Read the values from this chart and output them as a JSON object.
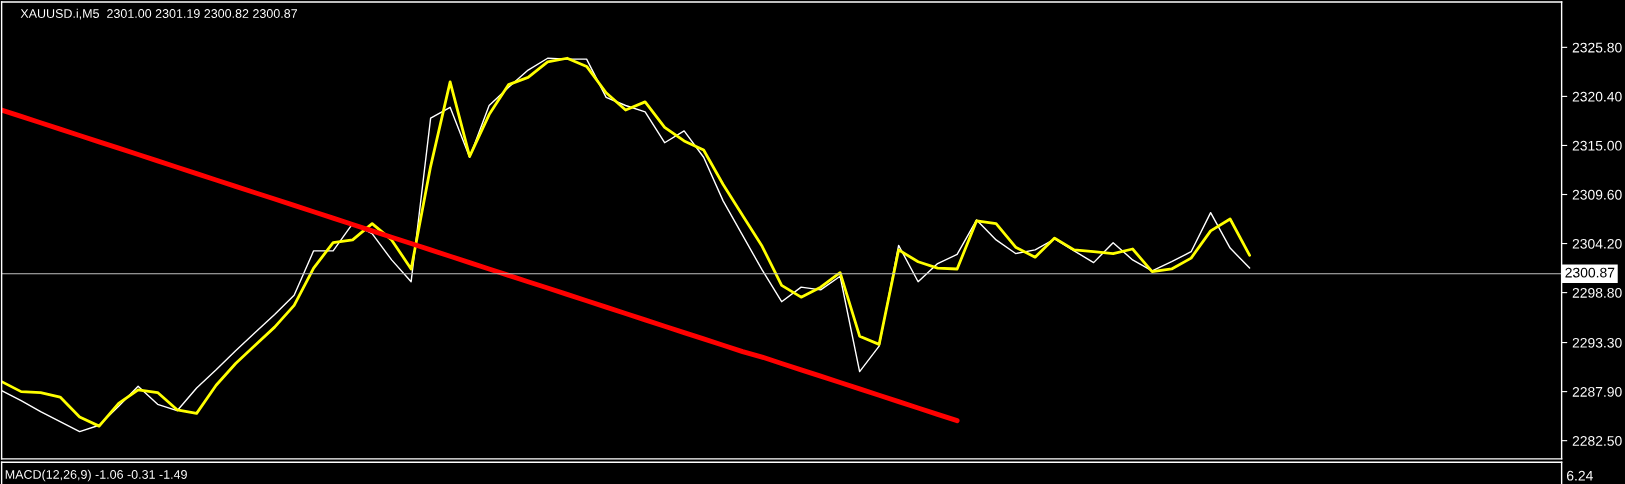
{
  "chart_data": [
    {
      "type": "line",
      "title": "XAUUSD.i,M5  2301.00 2301.19 2300.82 2300.87",
      "categories": [
        null,
        null,
        null,
        null,
        null,
        null,
        null,
        null,
        null,
        null,
        null,
        null,
        null,
        null,
        null,
        null,
        null,
        null,
        null,
        null,
        null,
        null,
        null,
        null,
        null,
        null,
        null,
        null,
        null,
        null,
        null,
        null,
        null,
        null,
        null,
        null,
        null,
        null,
        null,
        null,
        null,
        null,
        null,
        null,
        null,
        null,
        null,
        null,
        null,
        null,
        null,
        null,
        null,
        null,
        null,
        null,
        null,
        null,
        null,
        null,
        null,
        null,
        null,
        null,
        null,
        null,
        null,
        null,
        null,
        null,
        null,
        null,
        null,
        null,
        null,
        null,
        null,
        null,
        null,
        null,
        null
      ],
      "ylim": [
        2280.5,
        2330.8
      ],
      "yticks": [
        {
          "value": 2282.5,
          "label": "2282.50"
        },
        {
          "value": 2287.9,
          "label": "2287.90"
        },
        {
          "value": 2293.3,
          "label": "2293.30"
        },
        {
          "value": 2298.8,
          "label": "2298.80"
        },
        {
          "value": 2304.2,
          "label": "2304.20"
        },
        {
          "value": 2309.6,
          "label": "2309.60"
        },
        {
          "value": 2315.0,
          "label": "2315.00"
        },
        {
          "value": 2320.4,
          "label": "2320.40"
        },
        {
          "value": 2325.8,
          "label": "2325.80"
        }
      ],
      "tick_labels": "y",
      "grid": false,
      "legend": false,
      "marker": "none",
      "series": [
        {
          "color": "#ffffff",
          "values": [
            2288.0,
            2286.9,
            2285.7,
            2284.6,
            2283.5,
            2284.2,
            2286.3,
            2288.5,
            2286.5,
            2285.8,
            2288.3,
            2290.3,
            2292.4,
            2294.4,
            2296.4,
            2298.5,
            2303.4,
            2303.4,
            2306.4,
            2305.3,
            2302.4,
            2300.0,
            2318.0,
            2319.2,
            2313.7,
            2319.4,
            2321.4,
            2323.3,
            2324.6,
            2324.5,
            2324.5,
            2320.3,
            2319.4,
            2318.7,
            2315.3,
            2316.6,
            2313.7,
            2308.9,
            2305.1,
            2301.3,
            2297.8,
            2299.4,
            2299.1,
            2300.6,
            2290.1,
            2292.9,
            2304.0,
            2300.0,
            2302.0,
            2303.0,
            2306.8,
            2304.6,
            2303.1,
            2303.5,
            2304.7,
            2303.4,
            2302.1,
            2304.3,
            2302.4,
            2301.2,
            2302.2,
            2303.3,
            2307.6,
            2303.7,
            2301.5,
            null,
            null,
            null,
            null,
            null,
            null,
            null,
            null,
            null,
            null,
            null,
            null,
            null,
            null,
            null,
            null
          ]
        },
        {
          "color": "#ffff00",
          "values": [
            2289.0,
            2287.9,
            2287.8,
            2287.3,
            2285.1,
            2284.1,
            2286.6,
            2288.1,
            2287.8,
            2285.9,
            2285.5,
            2288.6,
            2291.0,
            2293.0,
            2295.0,
            2297.4,
            2301.5,
            2304.3,
            2304.6,
            2306.4,
            2304.6,
            2301.4,
            2312.7,
            2322.0,
            2313.8,
            2318.4,
            2321.7,
            2322.5,
            2324.2,
            2324.6,
            2323.7,
            2320.8,
            2318.9,
            2319.8,
            2317.0,
            2315.5,
            2314.5,
            2310.7,
            2307.3,
            2303.9,
            2299.6,
            2298.3,
            2299.4,
            2301.0,
            2294.0,
            2293.1,
            2303.5,
            2302.2,
            2301.5,
            2301.4,
            2306.7,
            2306.4,
            2303.8,
            2302.7,
            2304.8,
            2303.5,
            2303.3,
            2303.1,
            2303.6,
            2301.1,
            2301.4,
            2302.6,
            2305.6,
            2306.9,
            2302.9,
            null,
            null,
            null,
            null,
            null,
            null,
            null,
            null,
            null,
            null,
            null,
            null,
            null,
            null,
            null,
            null
          ]
        },
        {
          "color": "#ff0000",
          "values": [
            2318.9,
            2318.2,
            2317.5,
            2316.8,
            2316.1,
            2315.4,
            2314.7,
            2314.0,
            2313.3,
            2312.6,
            2311.9,
            2311.2,
            2310.5,
            2309.8,
            2309.1,
            2308.4,
            2307.7,
            2307.0,
            2306.3,
            2305.6,
            2304.9,
            2304.2,
            2303.5,
            2302.8,
            2302.1,
            2301.4,
            2300.7,
            2300.0,
            2299.3,
            2298.6,
            2297.9,
            2297.2,
            2296.5,
            2295.8,
            2295.1,
            2294.4,
            2293.7,
            2293.0,
            2292.3,
            2291.7,
            2291.0,
            2290.3,
            2289.6,
            2288.9,
            2288.2,
            2287.5,
            2286.8,
            2286.1,
            2285.4,
            2284.7,
            null,
            null,
            null,
            null,
            null,
            null,
            null,
            null,
            null,
            null,
            null,
            null,
            null,
            null,
            null,
            null,
            null,
            null,
            null,
            null,
            null,
            null,
            null,
            null,
            null,
            null,
            null,
            null,
            null,
            null,
            null
          ]
        }
      ],
      "ref_lines": [
        {
          "axis": "y",
          "value": 2300.87,
          "label": "2300.87",
          "color": "#c0c0c0"
        }
      ]
    },
    {
      "type": "other",
      "title": "MACD(12,26,9) -1.06 -0.31 -1.49",
      "annotations": [
        "6.24"
      ]
    }
  ]
}
